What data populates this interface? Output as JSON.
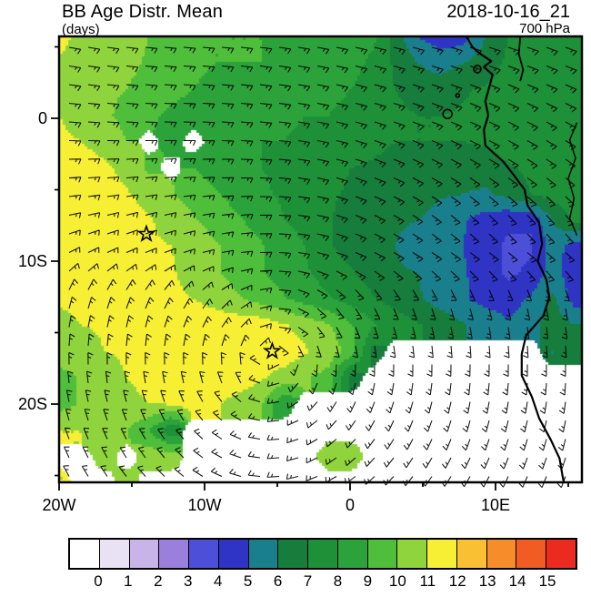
{
  "header": {
    "title": "BB Age Distr. Mean",
    "units": "(days)",
    "datetime": "2018-10-16_21",
    "level": "700 hPa"
  },
  "axes": {
    "x_major": [
      {
        "label": "20W",
        "lon": -20
      },
      {
        "label": "10W",
        "lon": -10
      },
      {
        "label": "0",
        "lon": 0
      },
      {
        "label": "10E",
        "lon": 10
      }
    ],
    "x_minor_lons": [
      -15,
      -5,
      5,
      15
    ],
    "y_major": [
      {
        "label": "0",
        "lat": 0
      },
      {
        "label": "10S",
        "lat": -10
      },
      {
        "label": "20S",
        "lat": -20
      }
    ],
    "y_minor_lats": [
      5,
      -5,
      -15,
      -25
    ]
  },
  "colorbar": {
    "labels": [
      "0",
      "1",
      "2",
      "3",
      "4",
      "5",
      "6",
      "7",
      "8",
      "9",
      "10",
      "11",
      "12",
      "13",
      "14",
      "15"
    ],
    "colors": [
      "#ffffff",
      "#e8e2f4",
      "#c8b4e8",
      "#9a7fdc",
      "#4d4fd8",
      "#2f34c4",
      "#1a7f8c",
      "#167d3c",
      "#1d9038",
      "#2ba23a",
      "#4fbe3a",
      "#8fd43c",
      "#f6ef33",
      "#f8c032",
      "#f68d2a",
      "#f05c24",
      "#ec2a20"
    ]
  },
  "chart_data": {
    "type": "heatmap",
    "title": "BB Age Distr. Mean",
    "units": "days",
    "level": "700 hPa",
    "valid_time": "2018-10-16_21",
    "lon_range": [
      -20,
      15.9
    ],
    "lat_range": [
      -25.5,
      5.7
    ],
    "levels": [
      0,
      1,
      2,
      3,
      4,
      5,
      6,
      7,
      8,
      9,
      10,
      11,
      12,
      13,
      14,
      15
    ],
    "grid": {
      "nx": 24,
      "ny": 18,
      "lon0": -20,
      "dlon": 1.543,
      "lat0": 5.7,
      "dlat": -1.835,
      "missing": -1,
      "values": [
        [
          11.5,
          10.5,
          10.5,
          10.3,
          10.0,
          9.6,
          9.2,
          9.0,
          9.0,
          9.0,
          9.0,
          8.8,
          8.6,
          8.5,
          8.2,
          6.5,
          5.0,
          4.5,
          4.5,
          6.0,
          7.0,
          7.5,
          7.8,
          8.0
        ],
        [
          10.8,
          10.5,
          10.4,
          10.2,
          9.9,
          9.5,
          9.2,
          9.0,
          9.0,
          9.0,
          8.9,
          8.7,
          8.5,
          8.3,
          7.8,
          6.8,
          6.0,
          5.5,
          6.0,
          6.5,
          7.2,
          7.5,
          7.8,
          8.0
        ],
        [
          10.6,
          10.4,
          10.2,
          10.0,
          9.7,
          9.3,
          9.0,
          8.7,
          8.6,
          8.6,
          8.6,
          8.5,
          8.2,
          8.0,
          7.6,
          7.0,
          6.6,
          6.6,
          6.9,
          7.1,
          7.4,
          7.6,
          7.9,
          8.0
        ],
        [
          11.0,
          10.6,
          10.2,
          9.7,
          9.2,
          8.8,
          8.5,
          8.2,
          8.1,
          8.1,
          8.1,
          8.0,
          8.0,
          7.8,
          7.5,
          7.2,
          7.0,
          7.0,
          7.1,
          7.4,
          7.6,
          7.8,
          8.0,
          8.0
        ],
        [
          11.2,
          11.0,
          10.6,
          10.0,
          -1,
          8.6,
          -1,
          8.2,
          8.0,
          8.0,
          8.0,
          7.9,
          7.7,
          7.5,
          7.2,
          7.0,
          7.0,
          7.0,
          7.0,
          7.1,
          7.4,
          7.6,
          7.9,
          8.0
        ],
        [
          11.6,
          11.5,
          11.2,
          10.7,
          9.8,
          -1,
          9.0,
          8.6,
          8.2,
          8.0,
          7.9,
          7.6,
          7.3,
          7.0,
          6.9,
          6.7,
          6.6,
          6.5,
          6.5,
          6.6,
          6.9,
          7.2,
          7.6,
          7.9
        ],
        [
          11.6,
          11.6,
          11.5,
          11.1,
          10.6,
          10.1,
          9.6,
          9.1,
          8.6,
          8.1,
          7.9,
          7.5,
          7.1,
          6.9,
          6.6,
          6.5,
          6.4,
          6.1,
          6.0,
          5.8,
          6.3,
          7.0,
          7.4,
          7.8
        ],
        [
          11.6,
          11.6,
          11.6,
          11.5,
          11.1,
          10.6,
          10.1,
          9.6,
          9.1,
          8.6,
          8.0,
          7.6,
          7.1,
          6.6,
          6.5,
          6.1,
          6.0,
          5.6,
          5.1,
          4.6,
          4.2,
          4.2,
          6.0,
          7.2
        ],
        [
          11.9,
          11.7,
          11.6,
          11.6,
          11.2,
          11.0,
          10.6,
          10.1,
          9.6,
          9.1,
          8.6,
          8.0,
          7.1,
          6.6,
          6.1,
          6.0,
          5.6,
          5.5,
          5.0,
          4.4,
          3.8,
          3.8,
          5.5,
          4.5
        ],
        [
          11.6,
          11.6,
          11.6,
          11.6,
          11.6,
          11.1,
          10.6,
          10.1,
          9.6,
          9.1,
          8.6,
          8.1,
          7.6,
          7.1,
          6.6,
          6.1,
          6.0,
          5.6,
          5.1,
          4.6,
          3.8,
          4.2,
          5.5,
          4.2
        ],
        [
          11.1,
          11.5,
          11.6,
          11.6,
          11.6,
          11.2,
          11.0,
          10.6,
          10.1,
          9.6,
          9.1,
          8.6,
          8.1,
          7.6,
          7.1,
          6.6,
          6.1,
          5.6,
          5.1,
          4.7,
          4.6,
          5.1,
          6.2,
          4.5
        ],
        [
          10.6,
          11.0,
          11.1,
          11.6,
          11.6,
          11.6,
          11.6,
          11.6,
          11.6,
          11.6,
          11.1,
          10.6,
          10.1,
          9.1,
          8.1,
          7.6,
          7.1,
          6.6,
          6.1,
          5.6,
          5.1,
          5.6,
          6.6,
          6.0
        ],
        [
          10.6,
          10.6,
          11.0,
          11.1,
          11.6,
          11.6,
          11.6,
          11.6,
          11.6,
          11.6,
          11.6,
          11.1,
          10.6,
          9.6,
          6.6,
          -1,
          -1,
          -1,
          -1,
          -1,
          -1,
          -1,
          6.0,
          6.5
        ],
        [
          9.6,
          10.1,
          10.6,
          11.0,
          11.4,
          11.6,
          11.6,
          11.6,
          11.6,
          11.1,
          10.6,
          10.1,
          9.6,
          6.6,
          -1,
          -1,
          -1,
          -1,
          -1,
          -1,
          -1,
          -1,
          -1,
          -1
        ],
        [
          9.6,
          10.1,
          10.6,
          10.6,
          11.0,
          11.1,
          11.4,
          11.1,
          10.6,
          10.1,
          8.1,
          -1,
          -1,
          -1,
          -1,
          -1,
          -1,
          -1,
          -1,
          -1,
          -1,
          -1,
          -1,
          -1
        ],
        [
          11.0,
          11.0,
          10.6,
          10.1,
          9.1,
          7.1,
          -1,
          -1,
          -1,
          -1,
          -1,
          -1,
          -1,
          -1,
          -1,
          -1,
          -1,
          -1,
          -1,
          -1,
          -1,
          -1,
          -1,
          -1
        ],
        [
          -1,
          -1,
          10.6,
          -1,
          10.6,
          10.6,
          -1,
          -1,
          -1,
          -1,
          -1,
          -1,
          10.6,
          10.6,
          -1,
          -1,
          -1,
          -1,
          -1,
          -1,
          -1,
          -1,
          -1,
          -1
        ],
        [
          11.0,
          -1,
          -1,
          10.6,
          -1,
          -1,
          -1,
          -1,
          -1,
          -1,
          -1,
          -1,
          -1,
          -1,
          -1,
          -1,
          -1,
          -1,
          -1,
          -1,
          -1,
          -1,
          -1,
          -1
        ]
      ]
    },
    "wind": {
      "nx": 16,
      "ny": 13,
      "lon0": -19,
      "dlon": 2.3,
      "lat0": 5,
      "dlat": -2.5,
      "speed_kt": 10,
      "dirs_from_deg": [
        [
          100,
          98,
          96,
          95,
          95,
          96,
          98,
          100,
          102,
          104,
          105,
          106,
          108,
          108,
          110,
          110
        ],
        [
          98,
          96,
          95,
          94,
          95,
          96,
          98,
          100,
          103,
          105,
          107,
          108,
          110,
          112,
          112,
          114
        ],
        [
          95,
          94,
          93,
          92,
          93,
          95,
          97,
          100,
          104,
          107,
          110,
          112,
          114,
          116,
          118,
          118
        ],
        [
          90,
          89,
          88,
          88,
          90,
          92,
          95,
          100,
          105,
          110,
          113,
          116,
          118,
          120,
          122,
          124
        ],
        [
          85,
          84,
          83,
          84,
          86,
          90,
          94,
          100,
          107,
          113,
          118,
          122,
          126,
          128,
          130,
          132
        ],
        [
          75,
          74,
          73,
          75,
          78,
          84,
          92,
          100,
          110,
          118,
          124,
          130,
          134,
          138,
          140,
          142
        ],
        [
          60,
          63,
          66,
          70,
          76,
          84,
          93,
          102,
          110,
          116,
          120,
          122,
          124,
          126,
          128,
          128
        ],
        [
          18,
          21,
          26,
          33,
          44,
          63,
          91,
          119,
          137,
          148,
          155,
          159,
          162,
          165,
          167,
          168
        ],
        [
          8,
          10,
          12,
          16,
          24,
          42,
          93,
          140,
          157,
          164,
          168,
          170,
          172,
          173,
          174,
          174
        ],
        [
          358,
          358,
          357,
          357,
          355,
          350,
          256,
          190,
          185,
          183,
          182,
          182,
          182,
          181,
          181,
          181
        ],
        [
          348,
          346,
          343,
          338,
          328,
          308,
          268,
          229,
          211,
          202,
          197,
          194,
          191,
          190,
          189,
          188
        ],
        [
          339,
          336,
          330,
          323,
          311,
          293,
          269,
          245,
          228,
          217,
          209,
          204,
          200,
          198,
          196,
          194
        ],
        [
          331,
          326,
          320,
          312,
          301,
          286,
          269,
          252,
          238,
          227,
          219,
          213,
          209,
          205,
          202,
          200
        ]
      ]
    },
    "markers": [
      {
        "name": "station-star",
        "lon": -14.0,
        "lat": -8.1
      },
      {
        "name": "station-star",
        "lon": -5.35,
        "lat": -16.3
      }
    ],
    "coastline": [
      [
        8.0,
        5.73
      ],
      [
        8.4,
        5.0
      ],
      [
        8.9,
        4.55
      ],
      [
        9.7,
        4.0
      ],
      [
        9.2,
        3.6
      ],
      [
        9.8,
        3.05
      ],
      [
        9.6,
        2.3
      ],
      [
        9.3,
        1.2
      ],
      [
        9.5,
        0.2
      ],
      [
        9.2,
        -0.8
      ],
      [
        9.3,
        -1.9
      ],
      [
        10.5,
        -3.0
      ],
      [
        11.2,
        -3.9
      ],
      [
        12.0,
        -5.0
      ],
      [
        12.2,
        -6.1
      ],
      [
        13.0,
        -7.3
      ],
      [
        13.2,
        -8.8
      ],
      [
        12.9,
        -10.0
      ],
      [
        13.5,
        -11.3
      ],
      [
        13.7,
        -12.5
      ],
      [
        13.3,
        -13.8
      ],
      [
        12.1,
        -15.2
      ],
      [
        11.8,
        -16.5
      ],
      [
        11.8,
        -18.0
      ],
      [
        12.5,
        -19.5
      ],
      [
        13.0,
        -21.0
      ],
      [
        13.8,
        -22.5
      ],
      [
        14.4,
        -23.8
      ],
      [
        14.6,
        -25.0
      ],
      [
        14.7,
        -25.5
      ]
    ],
    "border_line": [
      [
        11.7,
        5.73
      ],
      [
        11.6,
        4.5
      ],
      [
        11.9,
        3.4
      ],
      [
        11.7,
        2.6
      ]
    ],
    "inland_line": [
      [
        15.6,
        -0.3
      ],
      [
        15.1,
        -1.5
      ],
      [
        15.5,
        -2.8
      ],
      [
        15.0,
        -4.2
      ],
      [
        15.4,
        -5.6
      ],
      [
        15.1,
        -7.0
      ],
      [
        15.6,
        -8.2
      ]
    ],
    "islands": [
      {
        "lon": 8.75,
        "lat": 3.45,
        "r": 4
      },
      {
        "lon": 7.4,
        "lat": 1.6,
        "r": 2
      },
      {
        "lon": 6.7,
        "lat": 0.3,
        "r": 5
      }
    ]
  }
}
